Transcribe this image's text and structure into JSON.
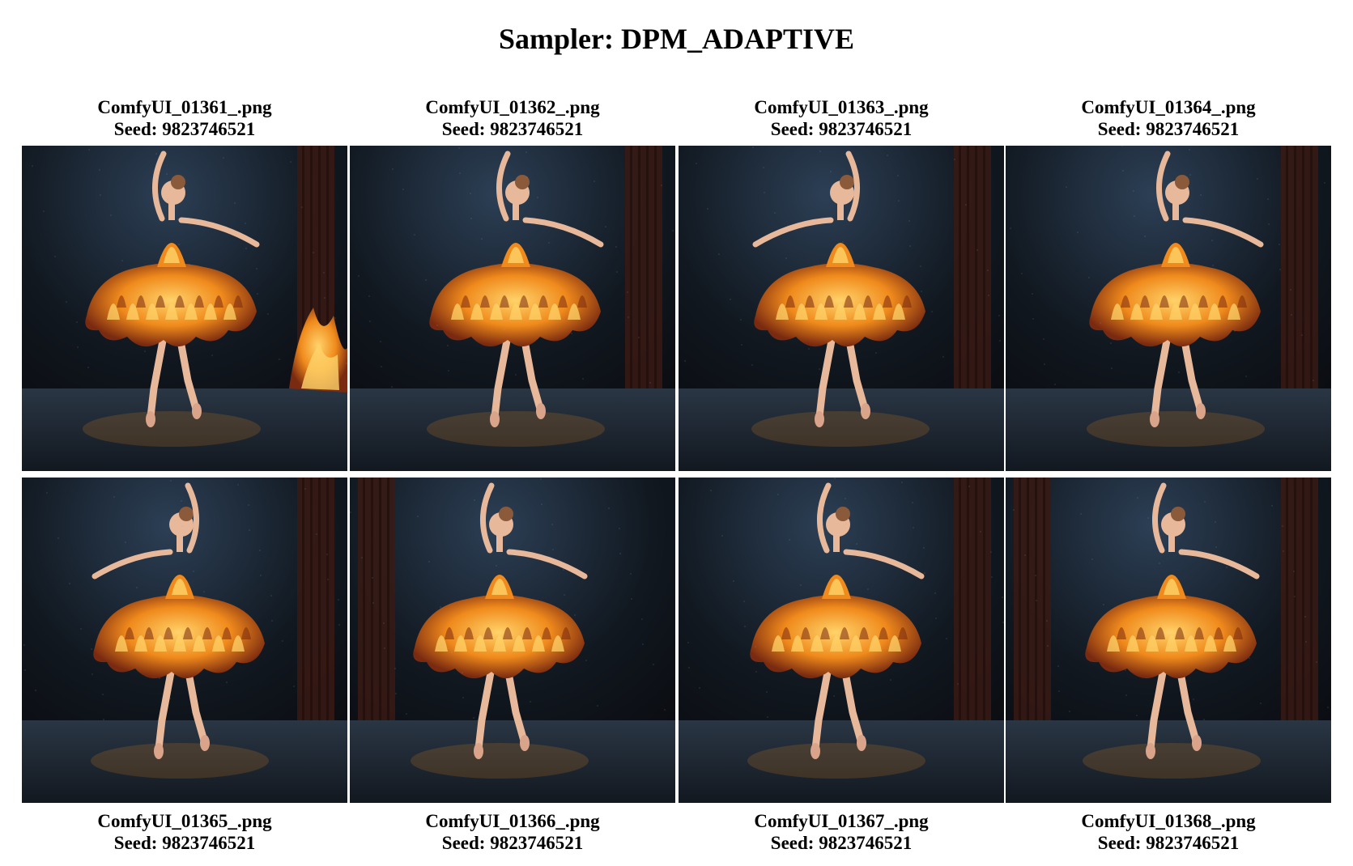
{
  "title": "Sampler: DPM_ADAPTIVE",
  "images": [
    {
      "filename": "ComfyUI_01361_.png",
      "seed": "Seed: 9823746521"
    },
    {
      "filename": "ComfyUI_01362_.png",
      "seed": "Seed: 9823746521"
    },
    {
      "filename": "ComfyUI_01363_.png",
      "seed": "Seed: 9823746521"
    },
    {
      "filename": "ComfyUI_01364_.png",
      "seed": "Seed: 9823746521"
    },
    {
      "filename": "ComfyUI_01365_.png",
      "seed": "Seed: 9823746521"
    },
    {
      "filename": "ComfyUI_01366_.png",
      "seed": "Seed: 9823746521"
    },
    {
      "filename": "ComfyUI_01367_.png",
      "seed": "Seed: 9823746521"
    },
    {
      "filename": "ComfyUI_01368_.png",
      "seed": "Seed: 9823746521"
    }
  ],
  "colors": {
    "stage_dark": "#0b0d12",
    "curtain": "#3a1a14",
    "flame_core": "#ffd36a",
    "flame_mid": "#f08a1c",
    "flame_dark": "#7a2a10",
    "skin": "#e8b89a",
    "floor": "#1f2a36"
  }
}
